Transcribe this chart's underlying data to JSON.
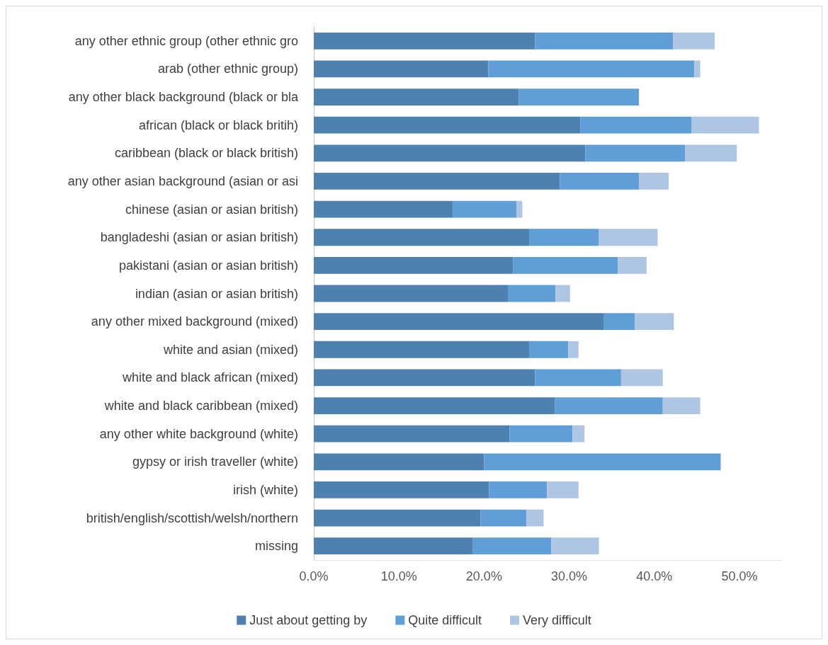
{
  "chart_data": {
    "type": "bar",
    "orientation": "horizontal",
    "stacked": true,
    "categories": [
      "any other ethnic group (other ethnic gro",
      "arab (other ethnic group)",
      "any other black background (black or bla",
      "african (black or black britih)",
      "caribbean (black or black british)",
      "any other asian background (asian or asi",
      "chinese (asian or asian british)",
      "bangladeshi (asian or asian british)",
      "pakistani (asian or asian british)",
      "indian (asian or asian british)",
      "any other mixed background (mixed)",
      "white and asian (mixed)",
      "white and black african (mixed)",
      "white and black caribbean (mixed)",
      "any other white background (white)",
      "gypsy or irish traveller (white)",
      "irish (white)",
      "british/english/scottish/welsh/northern",
      "missing"
    ],
    "series": [
      {
        "name": "Just about getting by",
        "color": "#4e81b0",
        "values": [
          26.0,
          20.5,
          24.1,
          31.3,
          31.9,
          28.9,
          16.3,
          25.3,
          23.4,
          22.8,
          34.1,
          25.3,
          26.0,
          28.3,
          23.0,
          20.0,
          20.6,
          19.6,
          18.7
        ]
      },
      {
        "name": "Quite difficult",
        "color": "#5f9ed6",
        "values": [
          16.2,
          24.2,
          14.1,
          13.1,
          11.7,
          9.3,
          7.5,
          8.2,
          12.3,
          5.6,
          3.6,
          4.6,
          10.1,
          12.7,
          7.4,
          27.8,
          6.8,
          5.4,
          9.2
        ]
      },
      {
        "name": "Very difficult",
        "color": "#aec6e4",
        "values": [
          4.9,
          0.7,
          0,
          7.9,
          6.1,
          3.5,
          0.7,
          6.9,
          3.4,
          1.7,
          4.6,
          1.2,
          4.9,
          4.4,
          1.4,
          0,
          3.7,
          2.0,
          5.6
        ]
      }
    ],
    "xlim": [
      0,
      55
    ],
    "xticks": [
      {
        "value": 0,
        "label": "0.0%"
      },
      {
        "value": 10,
        "label": "10.0%"
      },
      {
        "value": 20,
        "label": "20.0%"
      },
      {
        "value": 30,
        "label": "30.0%"
      },
      {
        "value": 40,
        "label": "40.0%"
      },
      {
        "value": 50,
        "label": "50.0%"
      }
    ],
    "grid": false,
    "legend": "bottom"
  }
}
